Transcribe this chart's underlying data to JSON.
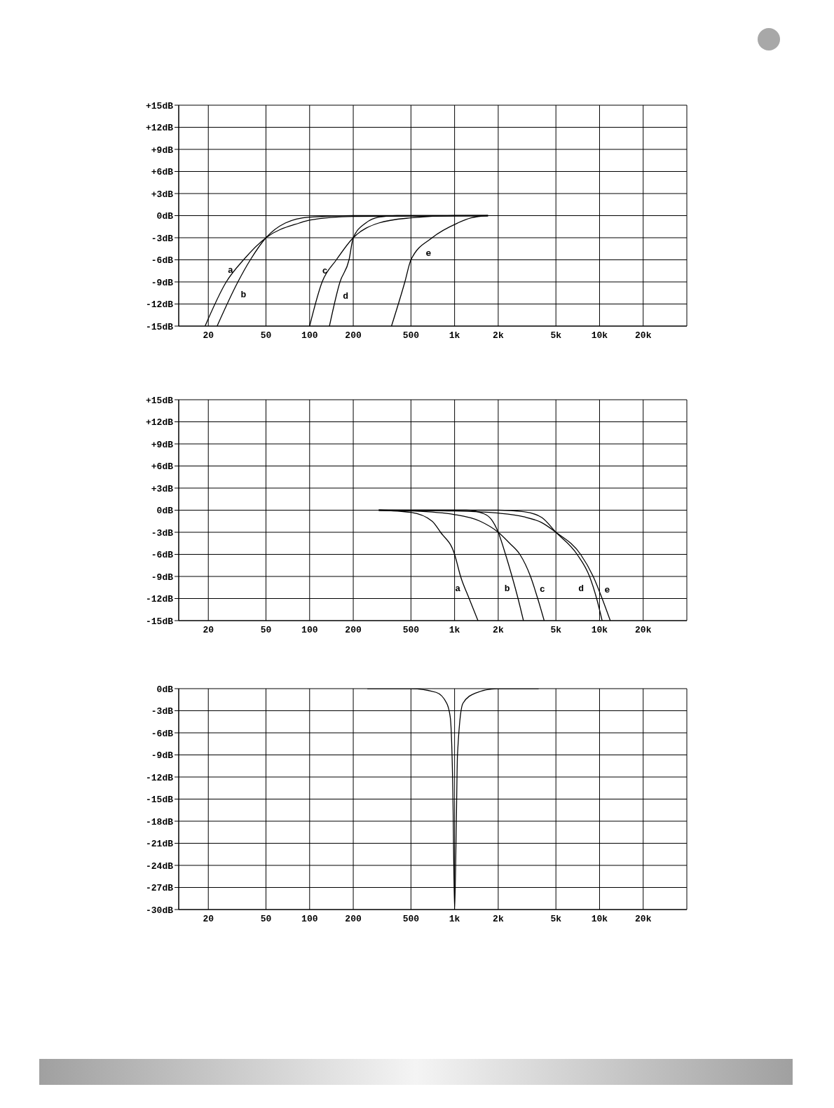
{
  "chart_data": [
    {
      "type": "line",
      "xlim": [
        12.5,
        40000
      ],
      "ylim": [
        -15,
        15
      ],
      "grid": true,
      "xticks": [
        20,
        50,
        100,
        200,
        500,
        {
          "value": 1000,
          "label": "1k"
        },
        {
          "value": 2000,
          "label": "2k"
        },
        {
          "value": 5000,
          "label": "5k"
        },
        {
          "value": 10000,
          "label": "10k"
        },
        {
          "value": 20000,
          "label": "20k"
        }
      ],
      "yticks": [
        {
          "value": -15,
          "label": "-15dB"
        },
        {
          "value": -12,
          "label": "-12dB"
        },
        {
          "value": -9,
          "label": "-9dB"
        },
        {
          "value": -6,
          "label": "-6dB"
        },
        {
          "value": -3,
          "label": "-3dB"
        },
        {
          "value": 0,
          "label": "0dB"
        },
        {
          "value": 3,
          "label": "+3dB"
        },
        {
          "value": 6,
          "label": "+6dB"
        },
        {
          "value": 9,
          "label": "+9dB"
        },
        {
          "value": 12,
          "label": "+12dB"
        },
        {
          "value": 15,
          "label": "+15dB"
        }
      ],
      "series": [
        {
          "name": "a",
          "color": "#000000",
          "x": [
            19,
            26.6,
            35,
            50,
            85,
            100,
            200,
            1700
          ],
          "values": [
            -15,
            -9,
            -6,
            -3,
            -1,
            -0.6,
            -0.1,
            0
          ]
        },
        {
          "name": "b",
          "color": "#000000",
          "x": [
            23,
            32,
            39,
            50,
            68,
            100,
            200,
            1700
          ],
          "values": [
            -15,
            -9,
            -6,
            -3,
            -1,
            -0.2,
            0,
            0
          ]
        },
        {
          "name": "c",
          "color": "#000000",
          "x": [
            100,
            122,
            153,
            200,
            300,
            500,
            1000,
            1700
          ],
          "values": [
            -15,
            -9,
            -6,
            -3,
            -1,
            -0.3,
            0,
            0
          ]
        },
        {
          "name": "d",
          "color": "#000000",
          "x": [
            137,
            162,
            187,
            200,
            244,
            300,
            400,
            1700
          ],
          "values": [
            -15,
            -9,
            -6,
            -3,
            -1,
            -0.2,
            0,
            0
          ]
        },
        {
          "name": "e",
          "color": "#000000",
          "x": [
            367,
            454,
            500,
            700,
            1050,
            1300,
            1700
          ],
          "values": [
            -15,
            -9,
            -6,
            -3,
            -1,
            -0.3,
            0
          ]
        }
      ],
      "log": "x"
    },
    {
      "type": "line",
      "xlim": [
        12.5,
        40000
      ],
      "ylim": [
        -15,
        15
      ],
      "grid": true,
      "xticks": [
        20,
        50,
        100,
        200,
        500,
        {
          "value": 1000,
          "label": "1k"
        },
        {
          "value": 2000,
          "label": "2k"
        },
        {
          "value": 5000,
          "label": "5k"
        },
        {
          "value": 10000,
          "label": "10k"
        },
        {
          "value": 20000,
          "label": "20k"
        }
      ],
      "yticks": [
        {
          "value": -15,
          "label": "-15dB"
        },
        {
          "value": -12,
          "label": "-12dB"
        },
        {
          "value": -9,
          "label": "-9dB"
        },
        {
          "value": -6,
          "label": "-6dB"
        },
        {
          "value": -3,
          "label": "-3dB"
        },
        {
          "value": 0,
          "label": "0dB"
        },
        {
          "value": 3,
          "label": "+3dB"
        },
        {
          "value": 6,
          "label": "+6dB"
        },
        {
          "value": 9,
          "label": "+9dB"
        },
        {
          "value": 12,
          "label": "+12dB"
        },
        {
          "value": 15,
          "label": "+15dB"
        }
      ],
      "series": [
        {
          "name": "a",
          "color": "#000000",
          "x": [
            300,
            500,
            700,
            800,
            1000,
            1100,
            1260,
            1450
          ],
          "values": [
            0,
            -0.3,
            -1.5,
            -3,
            -6,
            -9,
            -12,
            -15
          ]
        },
        {
          "name": "b",
          "color": "#000000",
          "x": [
            300,
            1200,
            1600,
            1800,
            2000,
            2245,
            2490,
            2740,
            2985
          ],
          "values": [
            0,
            0,
            -0.5,
            -1.3,
            -3,
            -6,
            -9,
            -12,
            -15
          ]
        },
        {
          "name": "c",
          "color": "#000000",
          "x": [
            300,
            500,
            1000,
            1500,
            2000,
            2400,
            2820,
            3340,
            3745,
            4150
          ],
          "values": [
            0,
            -0.1,
            -0.6,
            -1.5,
            -3,
            -4.5,
            -6,
            -9,
            -12,
            -15
          ]
        },
        {
          "name": "d",
          "color": "#000000",
          "x": [
            300,
            2000,
            3000,
            4000,
            5000,
            7000,
            8530,
            9550,
            10420
          ],
          "values": [
            0,
            0,
            -0.2,
            -1,
            -3,
            -6,
            -9,
            -12,
            -15
          ]
        },
        {
          "name": "e",
          "color": "#000000",
          "x": [
            300,
            1000,
            2000,
            3000,
            4000,
            5000,
            7400,
            9040,
            10420,
            11860
          ],
          "values": [
            0,
            -0.1,
            -0.4,
            -0.9,
            -1.7,
            -3,
            -6,
            -9,
            -12,
            -15
          ]
        }
      ],
      "log": "x"
    },
    {
      "type": "line",
      "xlim": [
        12.5,
        40000
      ],
      "ylim": [
        -30,
        0
      ],
      "grid": true,
      "log": "x",
      "xticks": [
        20,
        50,
        100,
        200,
        500,
        {
          "value": 1000,
          "label": "1k"
        },
        {
          "value": 2000,
          "label": "2k"
        },
        {
          "value": 5000,
          "label": "5k"
        },
        {
          "value": 10000,
          "label": "10k"
        },
        {
          "value": 20000,
          "label": "20k"
        }
      ],
      "yticks": [
        {
          "value": -30,
          "label": "-30dB"
        },
        {
          "value": -27,
          "label": "-27dB"
        },
        {
          "value": -24,
          "label": "-24dB"
        },
        {
          "value": -21,
          "label": "-21dB"
        },
        {
          "value": -18,
          "label": "-18dB"
        },
        {
          "value": -15,
          "label": "-15dB"
        },
        {
          "value": -12,
          "label": "-12dB"
        },
        {
          "value": -9,
          "label": "-9dB"
        },
        {
          "value": -6,
          "label": "-6dB"
        },
        {
          "value": -3,
          "label": "-3dB"
        },
        {
          "value": 0,
          "label": "0dB"
        }
      ],
      "series": [
        {
          "color": "#000000",
          "x": [
            250,
            500,
            745,
            883,
            935,
            973,
            1000,
            1030,
            1047,
            1141,
            1393,
            1960,
            3800
          ],
          "values": [
            0,
            0,
            -0.5,
            -2,
            -4,
            -14,
            -30,
            -17,
            -9,
            -2,
            -0.6,
            0,
            0
          ]
        }
      ]
    }
  ]
}
